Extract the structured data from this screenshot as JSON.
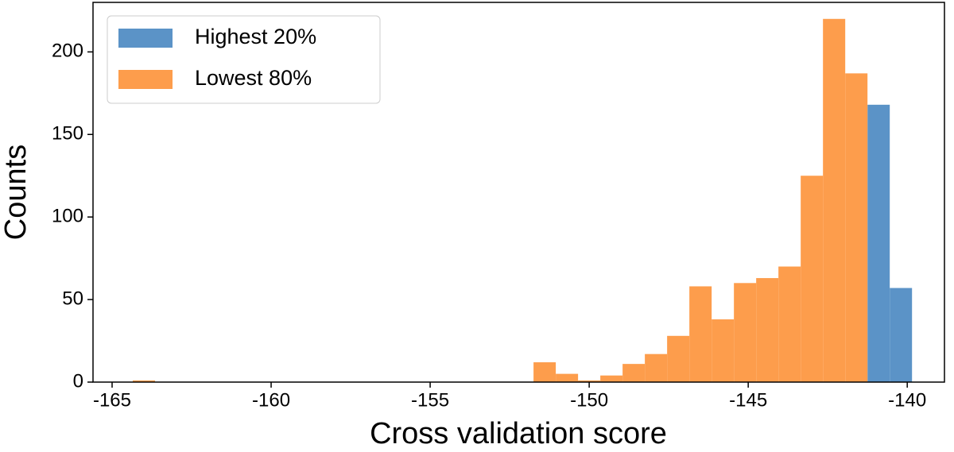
{
  "chart_data": {
    "type": "histogram",
    "xlabel": "Cross validation score",
    "ylabel": "Counts",
    "bins": [
      -164.35,
      -163.65,
      -162.95,
      -162.25,
      -161.55,
      -160.85,
      -160.15,
      -159.45,
      -158.75,
      -158.05,
      -157.35,
      -156.65,
      -155.95,
      -155.25,
      -154.55,
      -153.85,
      -153.15,
      -152.45,
      -151.75,
      -151.05,
      -150.35,
      -149.65,
      -148.95,
      -148.25,
      -147.55,
      -146.85,
      -146.15,
      -145.45,
      -144.75,
      -144.05,
      -143.35,
      -142.65,
      -141.95,
      -141.25,
      -140.55,
      -139.85
    ],
    "series": [
      {
        "name": "Highest 20%",
        "color": "#5b93c7",
        "values": [
          0,
          0,
          0,
          0,
          0,
          0,
          0,
          0,
          0,
          0,
          0,
          0,
          0,
          0,
          0,
          0,
          0,
          0,
          0,
          0,
          0,
          0,
          0,
          0,
          0,
          0,
          0,
          0,
          0,
          0,
          0,
          0,
          0,
          168,
          57
        ]
      },
      {
        "name": "Lowest 80%",
        "color": "#fd9d4c",
        "values": [
          1,
          0,
          0,
          0,
          0,
          0,
          0,
          0,
          0,
          0,
          0,
          0,
          0,
          0,
          0,
          0,
          0,
          0,
          12,
          5,
          1,
          4,
          11,
          17,
          28,
          58,
          38,
          60,
          63,
          70,
          125,
          220,
          187,
          0,
          0
        ]
      }
    ],
    "xlim": [
      -165.6,
      -138.83
    ],
    "xticks": [
      -165,
      -160,
      -155,
      -150,
      -145,
      -140
    ],
    "ylim": [
      0,
      230
    ],
    "yticks": [
      0,
      50,
      100,
      150,
      200
    ],
    "legend": "upper left"
  }
}
